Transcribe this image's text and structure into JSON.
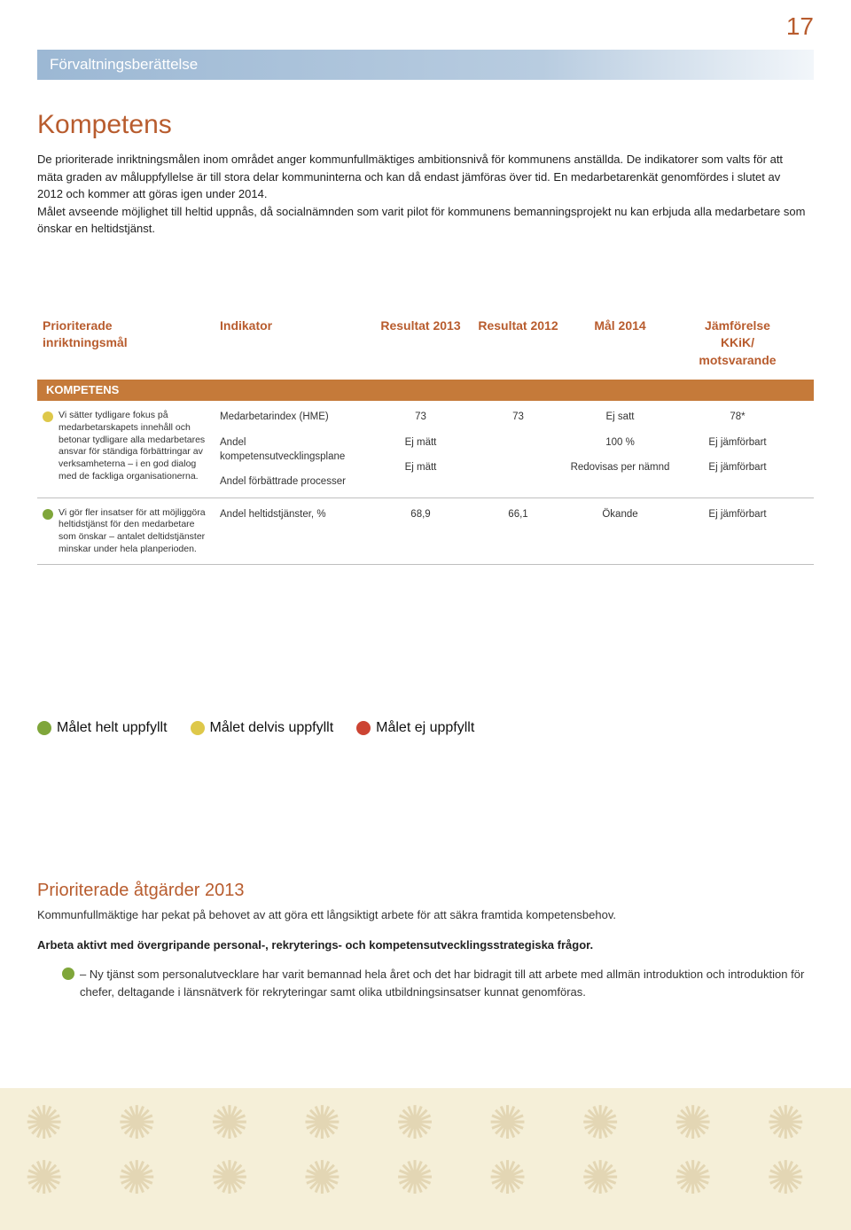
{
  "page_number": "17",
  "header_bar": "Förvaltningsberättelse",
  "section_title": "Kompetens",
  "intro_text": "De prioriterade inriktningsmålen inom området anger kommunfullmäktiges ambitionsnivå för kommunens anställda. De indikatorer som valts för att mäta graden av måluppfyllelse är till stora delar kommuninterna och kan då endast jämföras över tid. En medarbetarenkät genomfördes i slutet av 2012 och kommer att göras igen under 2014.\n   Målet avseende möjlighet till heltid uppnås, då socialnämnden som varit pilot för kommunens bemanningsprojekt nu kan erbjuda alla medarbetare som önskar en heltidstjänst.",
  "colors": {
    "orange": "#b85c2e",
    "cat_bar": "#c57a3a",
    "green": "#7fa63a",
    "yellow": "#dec84a",
    "red": "#cc4433",
    "footer_bg": "#f5efd8",
    "footer_pattern": "#b89858"
  },
  "table": {
    "headers": {
      "col1_line1": "Prioriterade",
      "col1_line2": "inriktningsmål",
      "col2": "Indikator",
      "col3": "Resultat 2013",
      "col4": "Resultat 2012",
      "col5": "Mål 2014",
      "col6_line1": "Jämförelse",
      "col6_line2": "KKiK/",
      "col6_line3": "motsvarande"
    },
    "category": "KOMPETENS",
    "rows": [
      {
        "status_color": "#dec84a",
        "goal": "Vi sätter tydligare fokus på medarbetarskapets innehåll och betonar tydligare alla medarbetares ansvar för ständiga förbättringar av verksamheterna – i en god dialog med de fackliga organisationerna.",
        "indicators": [
          "Medarbetarindex (HME)",
          "Andel kompetensutvecklingsplane",
          "Andel förbättrade processer"
        ],
        "r2013": [
          "73",
          "Ej mätt",
          "Ej mätt"
        ],
        "r2012": [
          "73",
          "",
          ""
        ],
        "mal2014": [
          "Ej satt",
          "100 %",
          "Redovisas per nämnd"
        ],
        "jf": [
          "78*",
          "Ej jämförbart",
          "Ej jämförbart"
        ]
      },
      {
        "status_color": "#7fa63a",
        "goal": "Vi gör fler insatser för att möjliggöra heltidstjänst för den medarbetare som önskar – antalet deltidstjänster minskar under hela planperioden.",
        "indicators": [
          "Andel heltidstjänster, %"
        ],
        "r2013": [
          "68,9"
        ],
        "r2012": [
          "66,1"
        ],
        "mal2014": [
          "Ökande"
        ],
        "jf": [
          "Ej jämförbart"
        ]
      }
    ]
  },
  "legend": {
    "items": [
      {
        "color": "#7fa63a",
        "label": "Målet helt uppfyllt"
      },
      {
        "color": "#dec84a",
        "label": "Målet delvis uppfyllt"
      },
      {
        "color": "#cc4433",
        "label": "Målet ej uppfyllt"
      }
    ]
  },
  "prio": {
    "title": "Prioriterade åtgärder 2013",
    "p1": "Kommunfullmäktige har pekat på behovet av att göra ett långsiktigt arbete för att säkra framtida kompetensbehov.",
    "p2_bold": "Arbeta aktivt med övergripande personal-, rekryterings- och kompetensutvecklingsstrategiska frågor.",
    "bullet_color": "#7fa63a",
    "bullet_text": "– Ny tjänst som personalutvecklare har varit bemannad hela året och det har bidragit till att arbete med allmän introduktion och introduktion för chefer, deltagande i länsnätverk för rekryteringar samt olika utbildningsinsatser kunnat genomföras."
  }
}
